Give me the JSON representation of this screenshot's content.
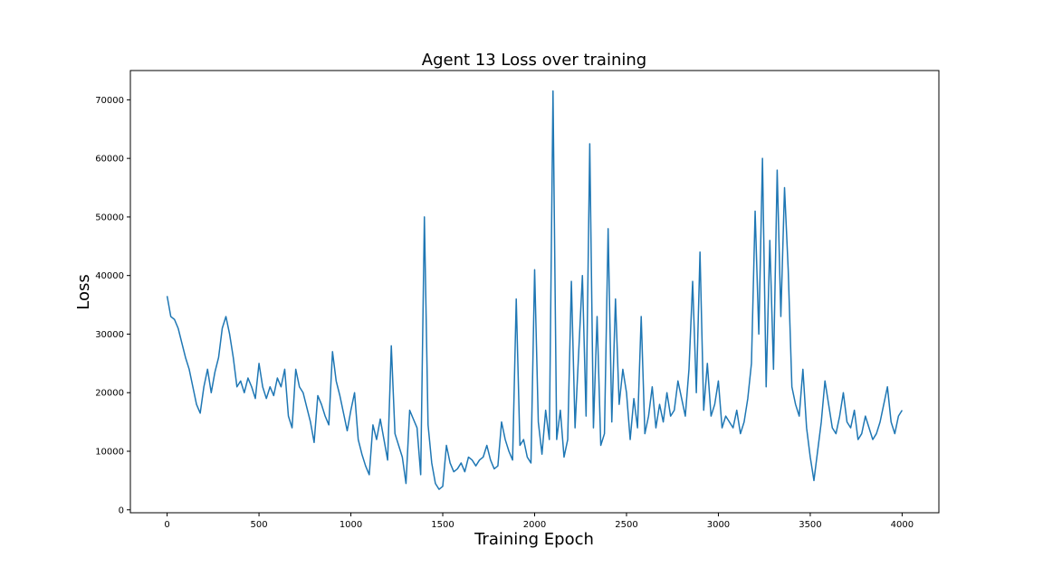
{
  "chart_data": {
    "type": "line",
    "title": "Agent 13 Loss over training",
    "xlabel": "Training Epoch",
    "ylabel": "Loss",
    "xlim": [
      -200,
      4200
    ],
    "ylim": [
      -500,
      75000
    ],
    "xticks": [
      0,
      500,
      1000,
      1500,
      2000,
      2500,
      3000,
      3500,
      4000
    ],
    "yticks": [
      0,
      10000,
      20000,
      30000,
      40000,
      50000,
      60000,
      70000
    ],
    "xtick_labels": [
      "0",
      "500",
      "1000",
      "1500",
      "2000",
      "2500",
      "3000",
      "3500",
      "4000"
    ],
    "ytick_labels": [
      "0",
      "10000",
      "20000",
      "30000",
      "40000",
      "50000",
      "60000",
      "70000"
    ],
    "grid": false,
    "legend": "none",
    "series": [
      {
        "color": "#1f77b4",
        "x": [
          0,
          20,
          40,
          60,
          80,
          100,
          120,
          140,
          160,
          180,
          200,
          220,
          240,
          260,
          280,
          300,
          320,
          340,
          360,
          380,
          400,
          420,
          440,
          460,
          480,
          500,
          520,
          540,
          560,
          580,
          600,
          620,
          640,
          660,
          680,
          700,
          720,
          740,
          760,
          780,
          800,
          820,
          840,
          860,
          880,
          900,
          920,
          940,
          960,
          980,
          1000,
          1020,
          1040,
          1060,
          1080,
          1100,
          1120,
          1140,
          1160,
          1180,
          1200,
          1220,
          1240,
          1260,
          1280,
          1300,
          1320,
          1340,
          1360,
          1380,
          1400,
          1420,
          1440,
          1460,
          1480,
          1500,
          1520,
          1540,
          1560,
          1580,
          1600,
          1620,
          1640,
          1660,
          1680,
          1700,
          1720,
          1740,
          1760,
          1780,
          1800,
          1820,
          1840,
          1860,
          1880,
          1900,
          1920,
          1940,
          1960,
          1980,
          2000,
          2020,
          2040,
          2060,
          2080,
          2100,
          2120,
          2140,
          2160,
          2180,
          2200,
          2220,
          2240,
          2260,
          2280,
          2300,
          2320,
          2340,
          2360,
          2380,
          2400,
          2420,
          2440,
          2460,
          2480,
          2500,
          2520,
          2540,
          2560,
          2580,
          2600,
          2620,
          2640,
          2660,
          2680,
          2700,
          2720,
          2740,
          2760,
          2780,
          2800,
          2820,
          2840,
          2860,
          2880,
          2900,
          2920,
          2940,
          2960,
          2980,
          3000,
          3020,
          3040,
          3060,
          3080,
          3100,
          3120,
          3140,
          3160,
          3180,
          3200,
          3220,
          3240,
          3260,
          3280,
          3300,
          3320,
          3340,
          3360,
          3380,
          3400,
          3420,
          3440,
          3460,
          3480,
          3500,
          3520,
          3540,
          3560,
          3580,
          3600,
          3620,
          3640,
          3660,
          3680,
          3700,
          3720,
          3740,
          3760,
          3780,
          3800,
          3820,
          3840,
          3860,
          3880,
          3900,
          3920,
          3940,
          3960,
          3980,
          4000
        ],
        "y": [
          36500,
          33000,
          32500,
          31000,
          28500,
          26000,
          24000,
          21000,
          18000,
          16500,
          21000,
          24000,
          20000,
          23500,
          26000,
          31000,
          33000,
          30000,
          26000,
          21000,
          22000,
          20000,
          22500,
          21000,
          19000,
          25000,
          21000,
          19000,
          21000,
          19500,
          22500,
          21000,
          24000,
          16000,
          14000,
          24000,
          21000,
          20000,
          17500,
          15000,
          11500,
          19500,
          18000,
          16000,
          14500,
          27000,
          22000,
          19500,
          16500,
          13500,
          17000,
          20000,
          12000,
          9500,
          7500,
          6000,
          14500,
          12000,
          15500,
          12000,
          8500,
          28000,
          13000,
          11000,
          9000,
          4500,
          17000,
          15500,
          14000,
          6000,
          50000,
          14500,
          8000,
          4500,
          3500,
          4000,
          11000,
          8000,
          6500,
          7000,
          8000,
          6500,
          9000,
          8500,
          7500,
          8500,
          9000,
          11000,
          8500,
          7000,
          7500,
          15000,
          12000,
          10000,
          8500,
          36000,
          11000,
          12000,
          9000,
          8000,
          41000,
          15000,
          9500,
          17000,
          12000,
          71500,
          12000,
          17000,
          9000,
          12000,
          39000,
          14000,
          27000,
          40000,
          16000,
          62500,
          14000,
          33000,
          11000,
          13000,
          48000,
          15000,
          36000,
          18000,
          24000,
          20000,
          12000,
          19000,
          14000,
          33000,
          13000,
          16000,
          21000,
          14000,
          18000,
          15000,
          20000,
          16000,
          17000,
          22000,
          19000,
          16000,
          24000,
          39000,
          20000,
          44000,
          17000,
          25000,
          16000,
          18000,
          22000,
          14000,
          16000,
          15000,
          14000,
          17000,
          13000,
          15000,
          19000,
          25000,
          51000,
          30000,
          60000,
          21000,
          46000,
          24000,
          58000,
          33000,
          55000,
          41000,
          21000,
          18000,
          16000,
          24000,
          14000,
          9000,
          5000,
          10000,
          15000,
          22000,
          18000,
          14000,
          13000,
          16000,
          20000,
          15000,
          14000,
          17000,
          12000,
          13000,
          16000,
          14000,
          12000,
          13000,
          15000,
          18000,
          21000,
          15000,
          13000,
          16000,
          17000
        ]
      }
    ]
  }
}
